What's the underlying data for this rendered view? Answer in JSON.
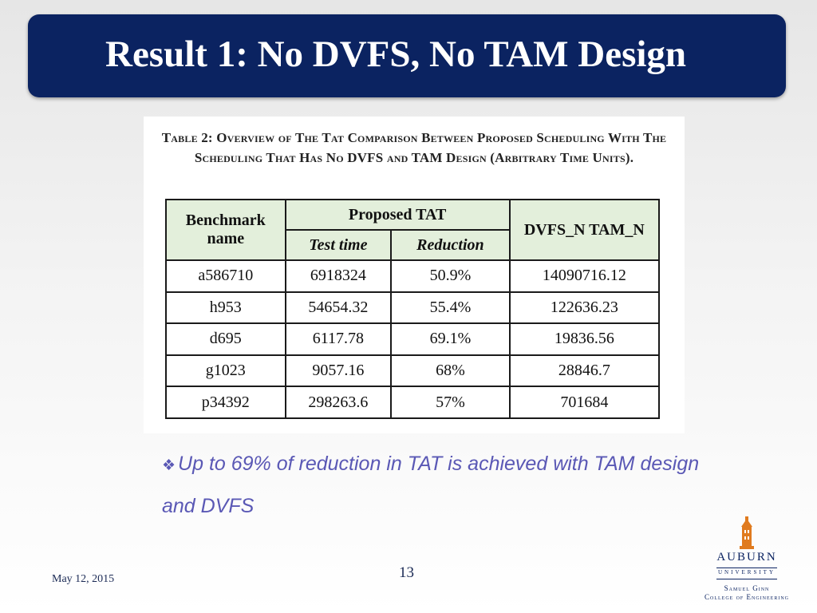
{
  "slide": {
    "title": "Result 1: No DVFS, No TAM Design",
    "bullet_marker": "❖",
    "bullet": "Up to 69% of reduction in TAT is achieved with TAM design and DVFS",
    "date": "May 12, 2015",
    "page_number": "13"
  },
  "table": {
    "caption": "Table 2: Overview of The Tat Comparison Between Proposed Scheduling With The Scheduling That Has No DVFS and TAM Design (Arbitrary Time Units).",
    "headers": {
      "benchmark": "Benchmark name",
      "proposed": "Proposed TAT",
      "test_time": "Test time",
      "reduction": "Reduction",
      "dvfs": "DVFS_N TAM_N"
    },
    "rows": [
      {
        "name": "a586710",
        "test_time": "6918324",
        "reduction": "50.9%",
        "dvfs": "14090716.12"
      },
      {
        "name": "h953",
        "test_time": "54654.32",
        "reduction": "55.4%",
        "dvfs": "122636.23"
      },
      {
        "name": "d695",
        "test_time": "6117.78",
        "reduction": "69.1%",
        "dvfs": "19836.56"
      },
      {
        "name": "g1023",
        "test_time": "9057.16",
        "reduction": "68%",
        "dvfs": "28846.7"
      },
      {
        "name": "p34392",
        "test_time": "298263.6",
        "reduction": "57%",
        "dvfs": "701684"
      }
    ]
  },
  "logo": {
    "name": "AUBURN",
    "university": "UNIVERSITY",
    "subtitle_1": "Samuel Ginn",
    "subtitle_2": "College of Engineering",
    "icon": "tower-icon"
  },
  "colors": {
    "title_bar": "#0b2361",
    "table_header": "#e3efdb",
    "bullet_text": "#5a58b5",
    "logo_orange": "#e07b1f"
  }
}
